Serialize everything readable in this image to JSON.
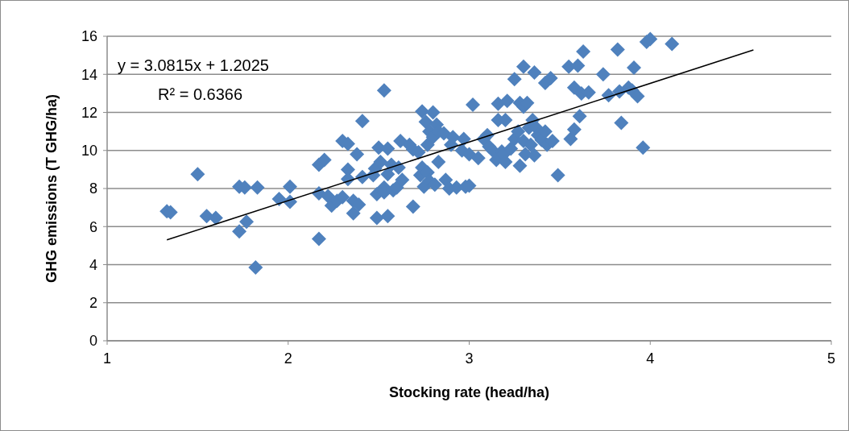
{
  "chart_data": {
    "type": "scatter",
    "xlabel": "Stocking rate (head/ha)",
    "ylabel": "GHG emissions (T GHG/ha)",
    "xlim": [
      1,
      5
    ],
    "xticks": [
      1,
      2,
      3,
      4,
      5
    ],
    "ylim": [
      0,
      16
    ],
    "yticks": [
      0,
      2,
      4,
      6,
      8,
      10,
      12,
      14,
      16
    ],
    "grid": "y",
    "annotations": [
      "y = 3.0815x + 1.2025",
      "R² = 0.6366"
    ],
    "series": [
      {
        "marker": "diamond",
        "color": "#4f81bd",
        "x": [
          1.33,
          1.35,
          1.5,
          1.55,
          1.6,
          1.73,
          1.73,
          1.76,
          1.77,
          1.83,
          1.82,
          1.95,
          2.01,
          2.01,
          2.17,
          2.17,
          2.17,
          2.2,
          2.22,
          2.24,
          2.27,
          2.3,
          2.3,
          2.33,
          2.33,
          2.33,
          2.36,
          2.36,
          2.38,
          2.39,
          2.41,
          2.41,
          2.47,
          2.48,
          2.49,
          2.49,
          2.5,
          2.51,
          2.53,
          2.53,
          2.53,
          2.55,
          2.55,
          2.55,
          2.57,
          2.58,
          2.6,
          2.61,
          2.62,
          2.63,
          2.67,
          2.69,
          2.69,
          2.72,
          2.73,
          2.74,
          2.74,
          2.75,
          2.76,
          2.77,
          2.77,
          2.78,
          2.78,
          2.8,
          2.8,
          2.81,
          2.82,
          2.83,
          2.83,
          2.86,
          2.87,
          2.89,
          2.9,
          2.91,
          2.93,
          2.96,
          2.97,
          2.98,
          3.0,
          3.0,
          3.02,
          3.05,
          3.08,
          3.1,
          3.11,
          3.13,
          3.15,
          3.16,
          3.16,
          3.18,
          3.19,
          3.2,
          3.2,
          3.21,
          3.23,
          3.25,
          3.25,
          3.27,
          3.28,
          3.28,
          3.3,
          3.3,
          3.3,
          3.31,
          3.32,
          3.33,
          3.34,
          3.35,
          3.36,
          3.36,
          3.37,
          3.38,
          3.4,
          3.42,
          3.42,
          3.43,
          3.45,
          3.46,
          3.49,
          3.55,
          3.56,
          3.58,
          3.58,
          3.6,
          3.61,
          3.62,
          3.63,
          3.66,
          3.74,
          3.77,
          3.82,
          3.83,
          3.84,
          3.88,
          3.9,
          3.91,
          3.93,
          3.96,
          3.98,
          4.0,
          4.12
        ],
        "values": [
          6.8,
          6.75,
          8.75,
          6.55,
          6.45,
          5.75,
          8.1,
          8.05,
          6.25,
          8.05,
          3.85,
          7.45,
          8.1,
          7.3,
          9.25,
          7.75,
          5.35,
          9.5,
          7.6,
          7.1,
          7.35,
          10.5,
          7.55,
          10.35,
          9.0,
          8.5,
          7.35,
          6.7,
          9.8,
          7.15,
          11.55,
          8.6,
          8.7,
          9.05,
          7.7,
          6.45,
          10.15,
          9.4,
          8.05,
          7.8,
          13.15,
          6.55,
          10.1,
          8.75,
          9.25,
          7.9,
          8.05,
          9.1,
          10.5,
          8.45,
          10.3,
          10.05,
          7.05,
          9.9,
          8.7,
          12.05,
          9.1,
          8.1,
          11.5,
          10.3,
          8.85,
          11.0,
          8.4,
          12.0,
          10.7,
          8.2,
          11.35,
          9.4,
          11.0,
          10.9,
          8.45,
          8.0,
          10.3,
          10.7,
          8.05,
          10.0,
          10.6,
          8.1,
          8.15,
          9.8,
          12.4,
          9.6,
          10.6,
          10.8,
          10.2,
          10.0,
          9.5,
          11.6,
          12.45,
          9.95,
          9.8,
          11.6,
          9.4,
          12.6,
          10.1,
          13.75,
          10.6,
          11.0,
          12.5,
          9.2,
          14.4,
          12.3,
          10.5,
          9.8,
          12.5,
          11.2,
          10.3,
          11.6,
          14.1,
          9.75,
          11.2,
          10.8,
          10.55,
          13.55,
          11.0,
          10.3,
          13.8,
          10.5,
          8.7,
          14.4,
          10.6,
          13.3,
          11.1,
          14.45,
          11.8,
          13.0,
          15.2,
          13.05,
          14.0,
          12.9,
          15.3,
          13.1,
          11.45,
          13.3,
          13.15,
          14.35,
          12.85,
          10.15,
          15.7,
          15.85,
          15.6
        ]
      },
      {
        "type": "line",
        "marker": "none",
        "color": "#000000",
        "x": [
          1.33,
          4.57
        ],
        "values": [
          5.3,
          15.28
        ]
      }
    ]
  }
}
